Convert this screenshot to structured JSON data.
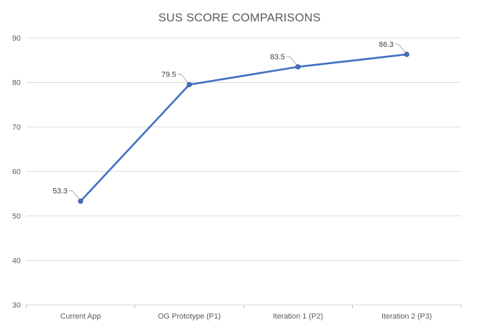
{
  "chart_data": {
    "type": "line",
    "title": "SUS SCORE COMPARISONS",
    "xlabel": "",
    "ylabel": "",
    "categories": [
      "Current App",
      "OG Prototype (P1)",
      "Iteration 1 (P2)",
      "Iteration 2 (P3)"
    ],
    "series": [
      {
        "values": [
          53.3,
          79.5,
          83.5,
          86.3
        ],
        "color": "#4472c4"
      }
    ],
    "data_labels": [
      "53.3",
      "79.5",
      "83.5",
      "86.3"
    ],
    "ylim": [
      30,
      90
    ],
    "yticks": [
      30,
      40,
      50,
      60,
      70,
      80,
      90
    ],
    "grid": true,
    "legend": "none"
  }
}
